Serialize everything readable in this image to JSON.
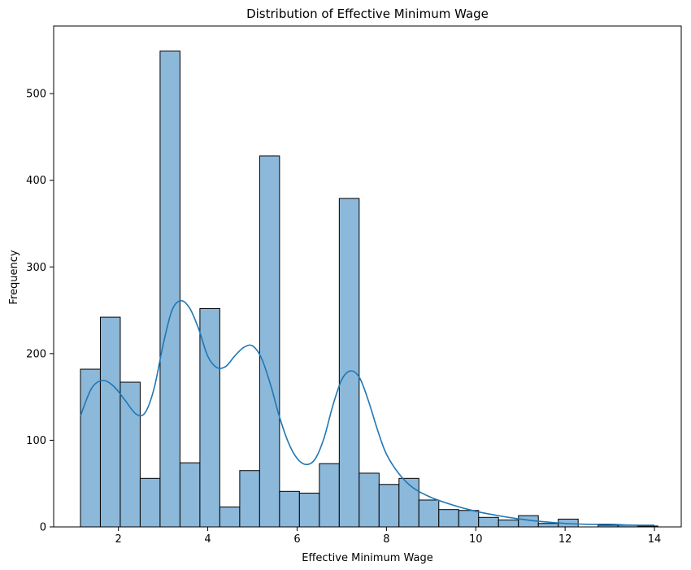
{
  "chart_data": {
    "type": "bar",
    "title": "Distribution of Effective Minimum Wage",
    "xlabel": "Effective Minimum Wage",
    "ylabel": "Frequency",
    "xlim": [
      0.55,
      14.6
    ],
    "ylim": [
      0,
      578
    ],
    "xticks": [
      2,
      4,
      6,
      8,
      10,
      12,
      14
    ],
    "yticks": [
      0,
      100,
      200,
      300,
      400,
      500
    ],
    "bin_start": 1.15,
    "bin_width": 0.4457,
    "values": [
      182,
      242,
      167,
      56,
      549,
      74,
      252,
      23,
      65,
      428,
      41,
      39,
      73,
      379,
      62,
      49,
      56,
      31,
      20,
      19,
      11,
      8,
      13,
      4,
      9,
      0,
      2,
      2,
      1
    ],
    "kde": {
      "x": [
        1.15,
        1.4,
        1.65,
        1.9,
        2.15,
        2.4,
        2.6,
        2.8,
        3.0,
        3.2,
        3.4,
        3.6,
        3.8,
        4.0,
        4.2,
        4.4,
        4.6,
        4.8,
        5.0,
        5.2,
        5.4,
        5.6,
        5.8,
        6.0,
        6.2,
        6.4,
        6.6,
        6.8,
        7.0,
        7.2,
        7.4,
        7.6,
        7.8,
        8.0,
        8.3,
        8.6,
        9.0,
        9.5,
        10.0,
        10.5,
        11.0,
        11.5,
        12.0,
        12.5,
        13.0,
        13.5,
        14.0
      ],
      "y": [
        128,
        160,
        169,
        162,
        146,
        130,
        132,
        160,
        210,
        250,
        261,
        252,
        228,
        197,
        184,
        185,
        197,
        207,
        209,
        195,
        165,
        128,
        98,
        79,
        72,
        78,
        102,
        140,
        170,
        180,
        172,
        145,
        112,
        84,
        60,
        45,
        34,
        25,
        18,
        13,
        9,
        6,
        4,
        3,
        3,
        2,
        2
      ]
    },
    "colors": {
      "bar_fill": "#8cb8da",
      "bar_edge": "#000000",
      "kde_line": "#1f77b4"
    },
    "grid": false,
    "legend": "none"
  }
}
